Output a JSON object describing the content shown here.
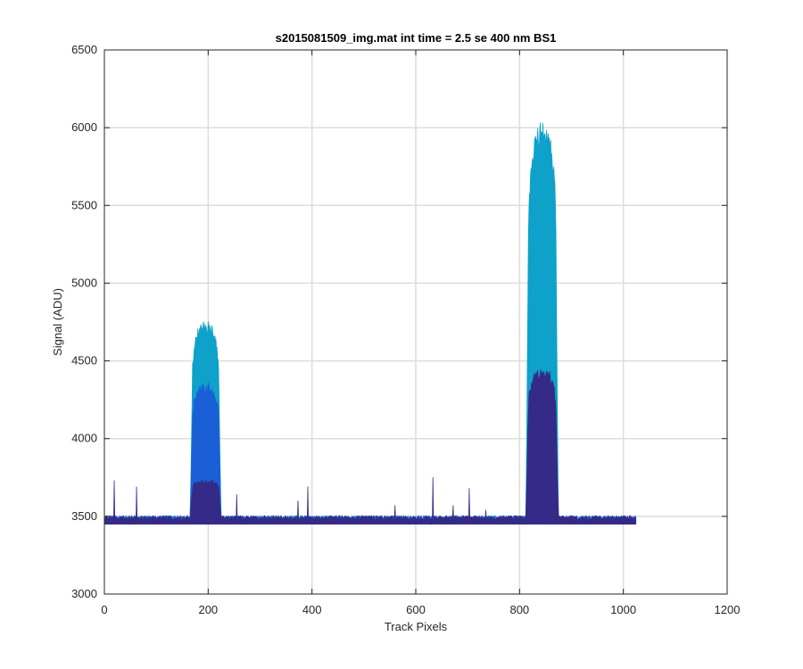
{
  "chart_data": {
    "type": "area",
    "title": "s2015081509_img.mat int time = 2.5 se  400 nm BS1",
    "xlabel": "Track Pixels",
    "ylabel": "Signal (ADU)",
    "xlim": [
      0,
      1200
    ],
    "ylim": [
      3000,
      6500
    ],
    "xticks": [
      0,
      200,
      400,
      600,
      800,
      1000,
      1200
    ],
    "yticks": [
      3000,
      3500,
      4000,
      4500,
      5000,
      5500,
      6000,
      6500
    ],
    "grid": true,
    "data_length": 1024,
    "baseline": 3490,
    "series": [
      {
        "color": "#352a87",
        "peaks": [
          {
            "x": [
              165,
              225
            ],
            "peak": 3730
          },
          {
            "x": [
              812,
              875
            ],
            "peak": 4450
          }
        ],
        "spikes": [
          {
            "x": 19,
            "value": 3730
          },
          {
            "x": 62,
            "value": 3690
          },
          {
            "x": 255,
            "value": 3640
          },
          {
            "x": 373,
            "value": 3600
          },
          {
            "x": 392,
            "value": 3690
          },
          {
            "x": 560,
            "value": 3570
          },
          {
            "x": 633,
            "value": 3750
          },
          {
            "x": 672,
            "value": 3570
          },
          {
            "x": 703,
            "value": 3680
          },
          {
            "x": 735,
            "value": 3540
          }
        ]
      },
      {
        "color": "#1a5fd6",
        "peaks": [
          {
            "x": [
              165,
              225
            ],
            "peak": 4350
          },
          {
            "x": [
              812,
              875
            ],
            "peak": 4400
          }
        ]
      },
      {
        "color": "#0ea1c9",
        "peaks": [
          {
            "x": [
              165,
              225
            ],
            "peak": 4760
          },
          {
            "x": [
              812,
              875
            ],
            "peak": 6050
          }
        ]
      }
    ]
  }
}
